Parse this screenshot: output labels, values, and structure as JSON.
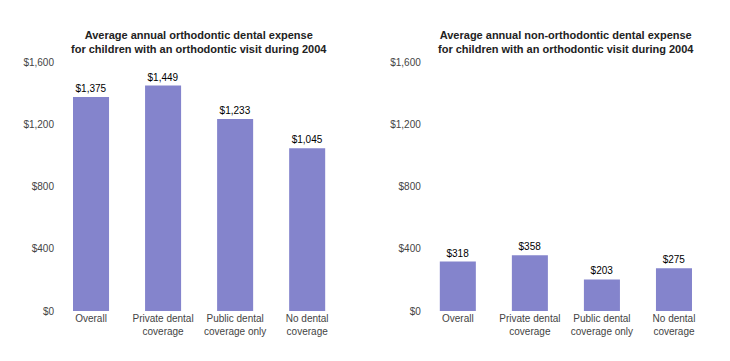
{
  "chart_data": [
    {
      "type": "bar",
      "title": "Average annual orthodontic dental expense\nfor children with an orthodontic visit during 2004",
      "categories": [
        "Overall",
        "Private dental\ncoverage",
        "Public dental\ncoverage only",
        "No dental\ncoverage"
      ],
      "values": [
        1375,
        1449,
        1233,
        1045
      ],
      "value_labels": [
        "$1,375",
        "$1,449",
        "$1,233",
        "$1,045"
      ],
      "data_labels": true,
      "color": "#8484cc",
      "ylim": [
        0,
        1600
      ],
      "yticks": [
        {
          "value": 0,
          "label": "$0"
        },
        {
          "value": 400,
          "label": "$400"
        },
        {
          "value": 800,
          "label": "$800"
        },
        {
          "value": 1200,
          "label": "$1,200"
        },
        {
          "value": 1600,
          "label": "$1,600"
        }
      ],
      "grid": false
    },
    {
      "type": "bar",
      "title": "Average annual non-orthodontic dental expense\nfor children with an orthodontic visit during 2004",
      "categories": [
        "Overall",
        "Private dental\ncoverage",
        "Public dental\ncoverage only",
        "No dental\ncoverage"
      ],
      "values": [
        318,
        358,
        203,
        275
      ],
      "value_labels": [
        "$318",
        "$358",
        "$203",
        "$275"
      ],
      "data_labels": true,
      "color": "#8484cc",
      "ylim": [
        0,
        1600
      ],
      "yticks": [
        {
          "value": 0,
          "label": "$0"
        },
        {
          "value": 400,
          "label": "$400"
        },
        {
          "value": 800,
          "label": "$800"
        },
        {
          "value": 1200,
          "label": "$1,200"
        },
        {
          "value": 1600,
          "label": "$1,600"
        }
      ],
      "grid": false
    }
  ]
}
